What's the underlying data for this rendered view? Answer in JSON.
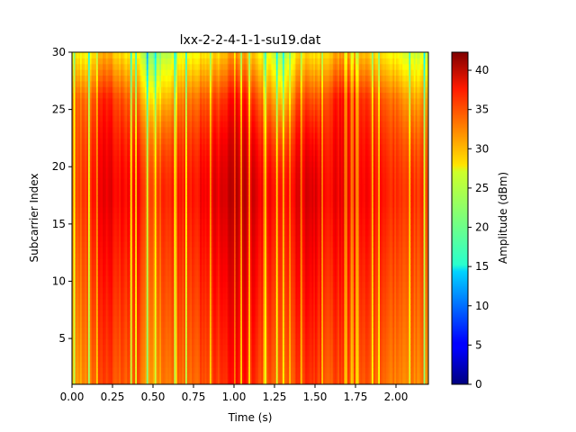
{
  "chart_data": {
    "type": "heatmap",
    "title": "lxx-2-2-4-1-1-su19.dat",
    "xlabel": "Time (s)",
    "ylabel": "Subcarrier Index",
    "xlim": [
      0,
      2.2
    ],
    "ylim": [
      1,
      30
    ],
    "x_ticks": [
      0.0,
      0.25,
      0.5,
      0.75,
      1.0,
      1.25,
      1.5,
      1.75,
      2.0
    ],
    "x_tick_labels": [
      "0.00",
      "0.25",
      "0.50",
      "0.75",
      "1.00",
      "1.25",
      "1.50",
      "1.75",
      "2.00"
    ],
    "y_ticks": [
      5,
      10,
      15,
      20,
      25,
      30
    ],
    "y_tick_labels": [
      "5",
      "10",
      "15",
      "20",
      "25",
      "30"
    ],
    "colorbar": {
      "label": "Amplitude (dBm)",
      "colormap": "jet",
      "vmin": 0,
      "vmax": 42.3,
      "ticks": [
        0,
        5,
        10,
        15,
        20,
        25,
        30,
        35,
        40
      ],
      "tick_labels": [
        "0",
        "5",
        "10",
        "15",
        "20",
        "25",
        "30",
        "35",
        "40"
      ]
    },
    "profile": {
      "description_note": "",
      "time_columns": [
        0.0,
        0.1,
        0.2,
        0.3,
        0.4,
        0.5,
        0.6,
        0.7,
        0.8,
        0.9,
        1.0,
        1.1,
        1.2,
        1.3,
        1.4,
        1.5,
        1.6,
        1.7,
        1.8,
        1.9,
        2.0,
        2.1,
        2.2
      ],
      "column_peak_amplitude": [
        33,
        35,
        38,
        37,
        37,
        33,
        36,
        36,
        37,
        38,
        40,
        39,
        37,
        36,
        38,
        38,
        37,
        38,
        37,
        36,
        35,
        35,
        35
      ],
      "top_edge_amplitude": [
        27,
        26,
        30,
        28,
        26,
        20,
        24,
        26,
        27,
        28,
        31,
        29,
        26,
        22,
        28,
        27,
        29,
        31,
        29,
        27,
        26,
        24,
        25
      ],
      "gridlines": false,
      "legend": "colorbar-right"
    }
  }
}
